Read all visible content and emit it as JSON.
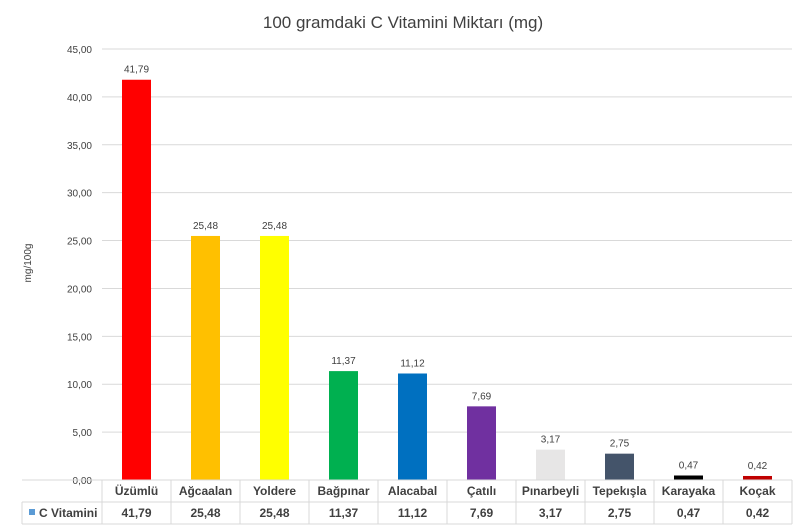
{
  "chart_data": {
    "type": "bar",
    "title": "100 gramdaki C Vitamini Miktarı (mg)",
    "xlabel": "",
    "ylabel": "mg/100g",
    "ylim": [
      0,
      45
    ],
    "yticks": [
      "0,00",
      "5,00",
      "10,00",
      "15,00",
      "20,00",
      "25,00",
      "30,00",
      "35,00",
      "40,00",
      "45,00"
    ],
    "grid": true,
    "legend": "data table",
    "categories": [
      "Üzümlü",
      "Ağcaalan",
      "Yoldere",
      "Bağpınar",
      "Alacabal",
      "Çatılı",
      "Pınarbeyli",
      "Tepekışla",
      "Karayaka",
      "Koçak"
    ],
    "series": [
      {
        "name": "C Vitamini",
        "color": "#5b9bd5",
        "values": [
          41.79,
          25.48,
          25.48,
          11.37,
          11.12,
          7.69,
          3.17,
          2.75,
          0.47,
          0.42
        ],
        "labels": [
          "41,79",
          "25,48",
          "25,48",
          "11,37",
          "11,12",
          "7,69",
          "3,17",
          "2,75",
          "0,47",
          "0,42"
        ],
        "point_colors": [
          "#ff0000",
          "#ffc000",
          "#ffff00",
          "#00b050",
          "#0070c0",
          "#7030a0",
          "#e7e6e6",
          "#44546a",
          "#000000",
          "#c00000"
        ]
      }
    ]
  }
}
